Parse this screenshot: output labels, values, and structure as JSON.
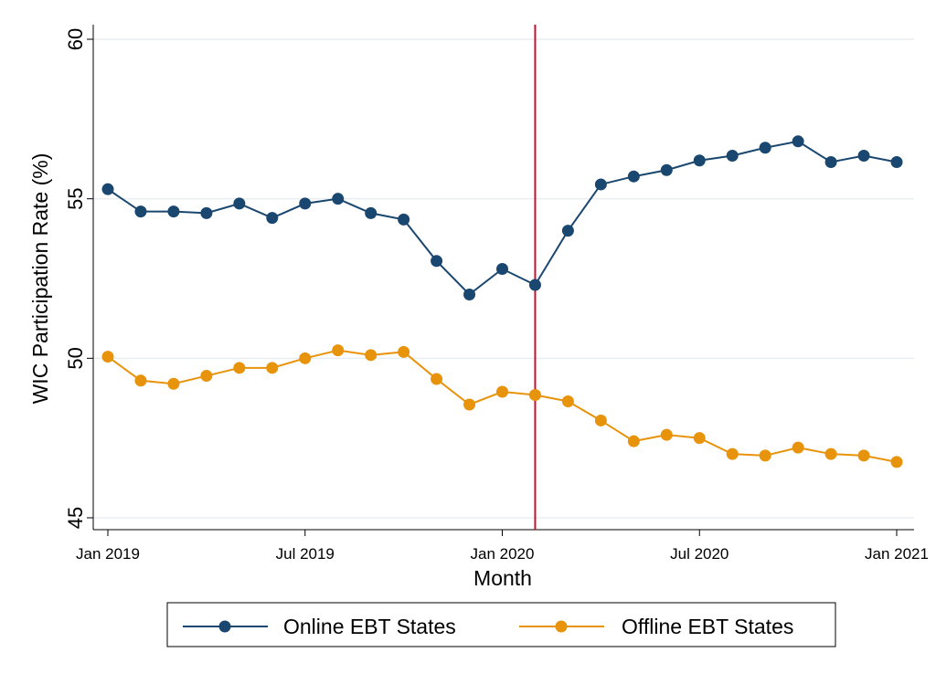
{
  "chart_data": {
    "type": "line",
    "title": "",
    "xlabel": "Month",
    "ylabel": "WIC Participation Rate (%)",
    "ylim": [
      45,
      60
    ],
    "yticks": [
      45,
      50,
      55,
      60
    ],
    "xlim": [
      0,
      24
    ],
    "xticks": [
      {
        "x": 0,
        "label": "Jan 2019"
      },
      {
        "x": 6,
        "label": "Jul 2019"
      },
      {
        "x": 12,
        "label": "Jan 2020"
      },
      {
        "x": 18,
        "label": "Jul 2020"
      },
      {
        "x": 24,
        "label": "Jan 2021"
      }
    ],
    "vline": {
      "x": 13,
      "color": "#c8102e"
    },
    "grid": true,
    "legend_position": "bottom",
    "series": [
      {
        "name": "Online EBT States",
        "color": "#1a476f",
        "values": [
          55.3,
          54.6,
          54.6,
          54.55,
          54.85,
          54.4,
          54.85,
          55.0,
          54.55,
          54.35,
          53.05,
          52.0,
          52.8,
          52.3,
          54.0,
          55.45,
          55.7,
          55.9,
          56.2,
          56.35,
          56.6,
          56.8,
          56.15,
          56.35,
          56.15
        ]
      },
      {
        "name": "Offline EBT States",
        "color": "#e8930c",
        "values": [
          50.05,
          49.3,
          49.2,
          49.45,
          49.7,
          49.7,
          50.0,
          50.25,
          50.1,
          50.2,
          49.35,
          48.55,
          48.95,
          48.85,
          48.65,
          48.05,
          47.4,
          47.6,
          47.5,
          47.0,
          46.95,
          47.2,
          47.0,
          46.95,
          46.75
        ]
      }
    ]
  }
}
